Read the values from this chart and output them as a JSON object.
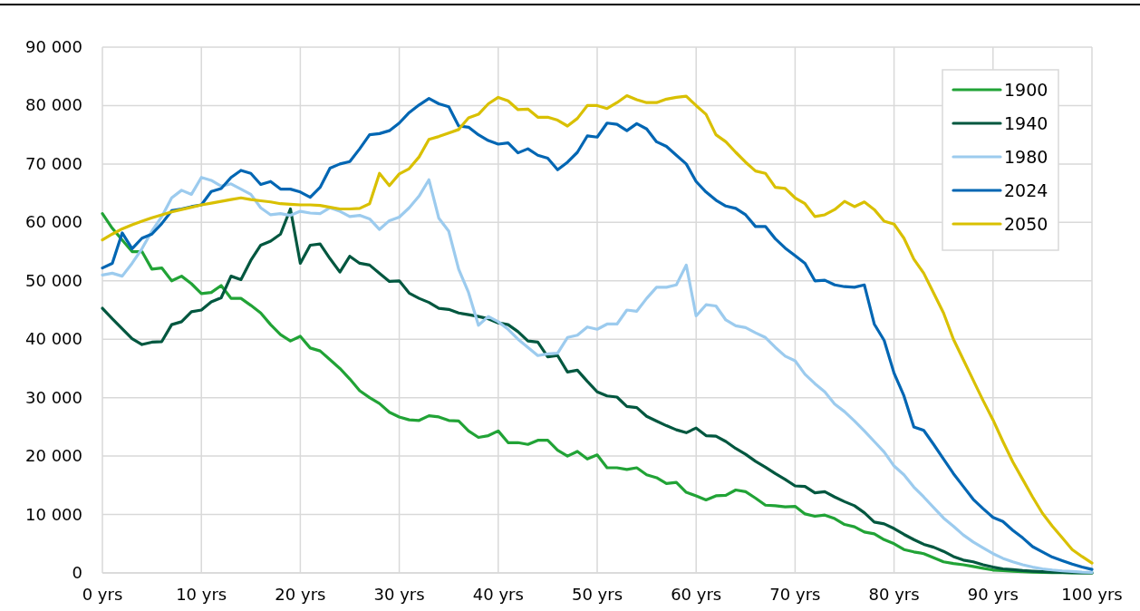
{
  "chart_data": {
    "type": "line",
    "x": [
      0,
      1,
      2,
      3,
      4,
      5,
      6,
      7,
      8,
      9,
      10,
      11,
      12,
      13,
      14,
      15,
      16,
      17,
      18,
      19,
      20,
      21,
      22,
      23,
      24,
      25,
      26,
      27,
      28,
      29,
      30,
      31,
      32,
      33,
      34,
      35,
      36,
      37,
      38,
      39,
      40,
      41,
      42,
      43,
      44,
      45,
      46,
      47,
      48,
      49,
      50,
      51,
      52,
      53,
      54,
      55,
      56,
      57,
      58,
      59,
      60,
      61,
      62,
      63,
      64,
      65,
      66,
      67,
      68,
      69,
      70,
      71,
      72,
      73,
      74,
      75,
      76,
      77,
      78,
      79,
      80,
      81,
      82,
      83,
      84,
      85,
      86,
      87,
      88,
      89,
      90,
      91,
      92,
      93,
      94,
      95,
      96,
      97,
      98,
      99,
      100
    ],
    "xlim": [
      0,
      100
    ],
    "xticks": [
      {
        "value": 0,
        "label": "0 yrs"
      },
      {
        "value": 10,
        "label": "10 yrs"
      },
      {
        "value": 20,
        "label": "20 yrs"
      },
      {
        "value": 30,
        "label": "30 yrs"
      },
      {
        "value": 40,
        "label": "40 yrs"
      },
      {
        "value": 50,
        "label": "50 yrs"
      },
      {
        "value": 60,
        "label": "60 yrs"
      },
      {
        "value": 70,
        "label": "70 yrs"
      },
      {
        "value": 80,
        "label": "80 yrs"
      },
      {
        "value": 90,
        "label": "90 yrs"
      },
      {
        "value": 100,
        "label": "100 yrs"
      }
    ],
    "ylim": [
      0,
      90000
    ],
    "yticks": [
      {
        "value": 0,
        "label": "0"
      },
      {
        "value": 10000,
        "label": "10 000"
      },
      {
        "value": 20000,
        "label": "20 000"
      },
      {
        "value": 30000,
        "label": "30 000"
      },
      {
        "value": 40000,
        "label": "40 000"
      },
      {
        "value": 50000,
        "label": "50 000"
      },
      {
        "value": 60000,
        "label": "60 000"
      },
      {
        "value": 70000,
        "label": "70 000"
      },
      {
        "value": 80000,
        "label": "80 000"
      },
      {
        "value": 90000,
        "label": "90 000"
      }
    ],
    "grid": true,
    "legend": "top right",
    "line_style": "solid",
    "marker": "none",
    "series": [
      {
        "name": "1900",
        "color": "#21a336",
        "values": [
          61500,
          59000,
          57000,
          55000,
          55000,
          52000,
          52200,
          50000,
          50800,
          49500,
          47800,
          48000,
          49200,
          47000,
          47000,
          45800,
          44500,
          42500,
          40800,
          39700,
          40500,
          38500,
          38000,
          36500,
          35000,
          33200,
          31200,
          30000,
          29000,
          27500,
          26700,
          26200,
          26100,
          26900,
          26700,
          26100,
          26000,
          24300,
          23200,
          23500,
          24300,
          22300,
          22300,
          22000,
          22700,
          22700,
          21000,
          20000,
          20800,
          19500,
          20200,
          18000,
          18000,
          17700,
          18000,
          16800,
          16300,
          15300,
          15500,
          13800,
          13200,
          12500,
          13200,
          13300,
          14200,
          13900,
          12800,
          11600,
          11500,
          11300,
          11400,
          10100,
          9700,
          9900,
          9300,
          8300,
          7900,
          7000,
          6700,
          5700,
          5000,
          4000,
          3600,
          3300,
          2600,
          1900,
          1600,
          1400,
          1100,
          800,
          500,
          400,
          300,
          200,
          150,
          100,
          70,
          50,
          30,
          20,
          10
        ]
      },
      {
        "name": "1940",
        "color": "#00573f",
        "values": [
          45300,
          43500,
          41800,
          40100,
          39100,
          39500,
          39600,
          42500,
          43000,
          44700,
          45000,
          46400,
          47100,
          50800,
          50200,
          53500,
          56100,
          56800,
          58000,
          62300,
          53000,
          56100,
          56300,
          53800,
          51500,
          54200,
          53000,
          52700,
          51300,
          49900,
          50000,
          47900,
          47000,
          46300,
          45300,
          45100,
          44500,
          44200,
          43900,
          43500,
          42800,
          42500,
          41300,
          39700,
          39500,
          37000,
          37200,
          34400,
          34700,
          32800,
          31000,
          30300,
          30100,
          28500,
          28300,
          26800,
          26000,
          25200,
          24500,
          24000,
          24800,
          23500,
          23400,
          22500,
          21300,
          20300,
          19100,
          18100,
          17000,
          16000,
          14900,
          14800,
          13700,
          13900,
          13000,
          12200,
          11500,
          10300,
          8700,
          8400,
          7600,
          6600,
          5700,
          4900,
          4400,
          3700,
          2800,
          2200,
          1900,
          1400,
          1000,
          700,
          550,
          400,
          300,
          200,
          120,
          80,
          50,
          30,
          20
        ]
      },
      {
        "name": "1980",
        "color": "#9ccbee",
        "values": [
          51000,
          51300,
          50800,
          53000,
          55500,
          58500,
          61000,
          64200,
          65500,
          64800,
          67700,
          67200,
          66200,
          66600,
          65700,
          64800,
          62500,
          61300,
          61500,
          61200,
          61900,
          61600,
          61500,
          62500,
          61900,
          61000,
          61200,
          60600,
          58800,
          60300,
          60900,
          62500,
          64500,
          67300,
          60700,
          58500,
          52000,
          48000,
          42400,
          43900,
          43000,
          41700,
          40000,
          38600,
          37200,
          37500,
          37600,
          40300,
          40700,
          42100,
          41700,
          42600,
          42600,
          45000,
          44800,
          47000,
          48900,
          48900,
          49300,
          52700,
          44000,
          45900,
          45700,
          43300,
          42300,
          42000,
          41100,
          40300,
          38600,
          37100,
          36300,
          34000,
          32400,
          31000,
          28900,
          27600,
          26000,
          24300,
          22500,
          20700,
          18300,
          16800,
          14700,
          13000,
          11200,
          9400,
          8000,
          6500,
          5300,
          4300,
          3300,
          2500,
          1900,
          1400,
          1000,
          700,
          500,
          350,
          250,
          150,
          100
        ]
      },
      {
        "name": "2024",
        "color": "#0066b3",
        "values": [
          52200,
          53000,
          58200,
          55500,
          57300,
          58000,
          59800,
          62000,
          62300,
          62700,
          63000,
          65300,
          65800,
          67700,
          68900,
          68400,
          66500,
          67000,
          65700,
          65700,
          65200,
          64300,
          66000,
          69300,
          70000,
          70400,
          72600,
          75000,
          75200,
          75700,
          77000,
          78800,
          80100,
          81200,
          80300,
          79800,
          76500,
          76300,
          75000,
          74000,
          73400,
          73600,
          71900,
          72600,
          71500,
          71000,
          69000,
          70300,
          72000,
          74800,
          74600,
          77000,
          76800,
          75700,
          76900,
          76000,
          73800,
          73000,
          71500,
          70000,
          67000,
          65200,
          63800,
          62800,
          62400,
          61300,
          59300,
          59300,
          57200,
          55600,
          54300,
          53000,
          50000,
          50100,
          49300,
          49000,
          48900,
          49300,
          42600,
          39800,
          34200,
          30300,
          25000,
          24400,
          22000,
          19500,
          17000,
          14800,
          12600,
          11000,
          9500,
          8800,
          7300,
          6000,
          4500,
          3600,
          2700,
          2100,
          1500,
          1000,
          600
        ]
      },
      {
        "name": "2050",
        "color": "#d9c000",
        "values": [
          57000,
          58000,
          58900,
          59600,
          60200,
          60800,
          61300,
          61800,
          62200,
          62600,
          63000,
          63300,
          63600,
          63900,
          64200,
          63900,
          63700,
          63500,
          63200,
          63100,
          63000,
          63000,
          62900,
          62600,
          62300,
          62300,
          62400,
          63200,
          68400,
          66300,
          68300,
          69200,
          71200,
          74200,
          74700,
          75300,
          75900,
          77900,
          78500,
          80300,
          81400,
          80800,
          79300,
          79400,
          78000,
          78000,
          77500,
          76500,
          77800,
          80000,
          80000,
          79500,
          80500,
          81700,
          81000,
          80500,
          80500,
          81100,
          81400,
          81600,
          80000,
          78500,
          75000,
          73800,
          72000,
          70300,
          68800,
          68400,
          66000,
          65800,
          64200,
          63200,
          61000,
          61300,
          62200,
          63600,
          62700,
          63500,
          62200,
          60200,
          59700,
          57300,
          53700,
          51300,
          47900,
          44500,
          40000,
          36500,
          33000,
          29500,
          26200,
          22500,
          19000,
          16000,
          13000,
          10200,
          8000,
          6000,
          4000,
          2800,
          1700
        ]
      }
    ]
  }
}
